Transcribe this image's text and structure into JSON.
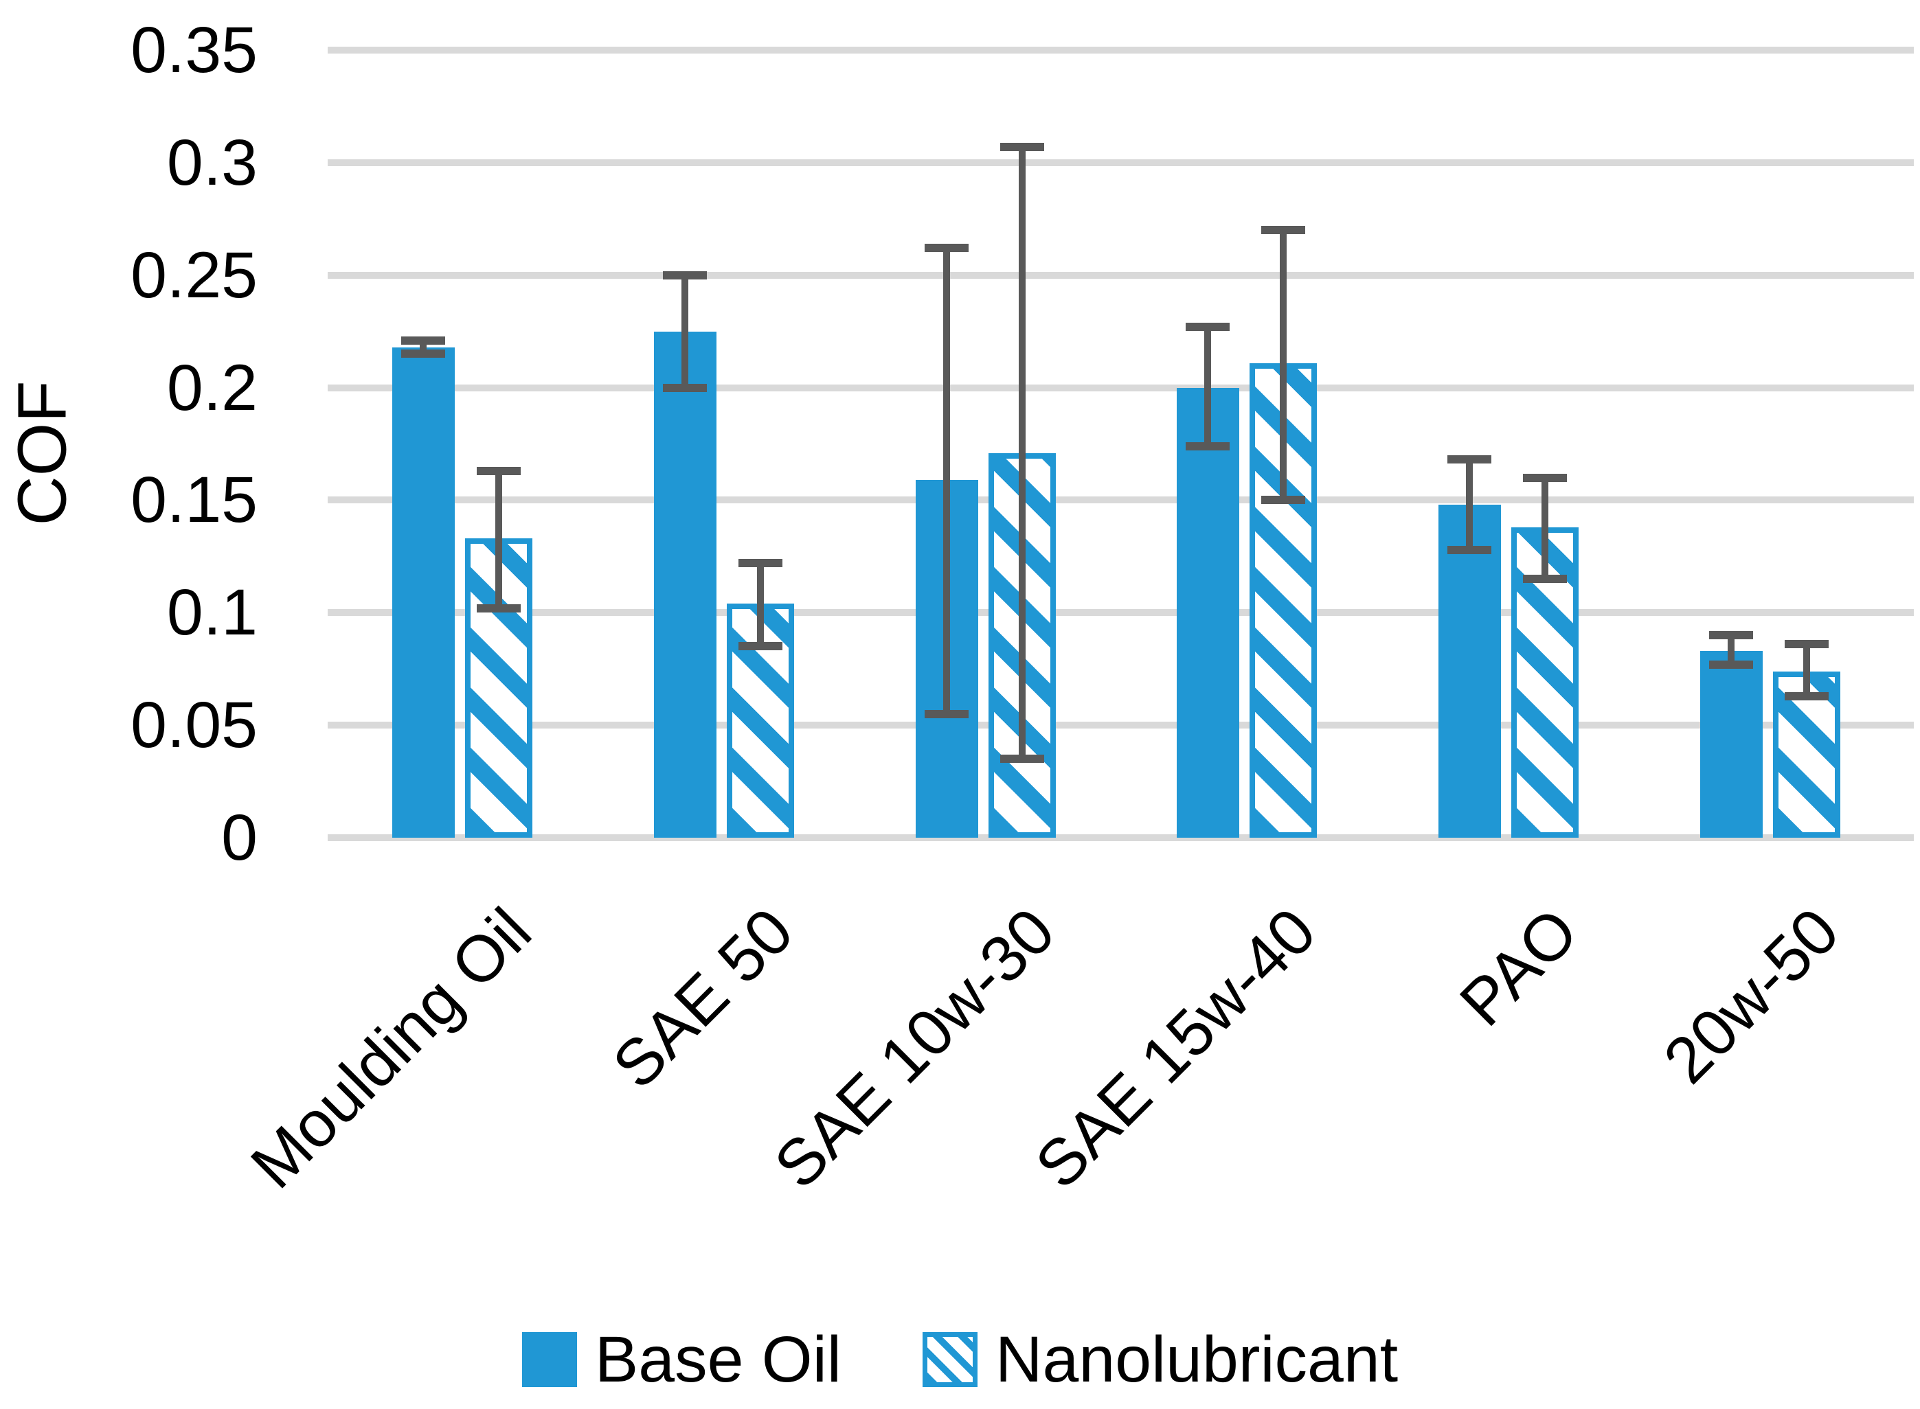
{
  "chart_data": {
    "type": "bar",
    "title": "",
    "xlabel": "",
    "ylabel": "COF",
    "ylim": [
      0,
      0.35
    ],
    "ytick_step": 0.05,
    "yticks": [
      0,
      0.05,
      0.1,
      0.15,
      0.2,
      0.25,
      0.3,
      0.35
    ],
    "ytick_labels": [
      "0",
      "0.05",
      "0.1",
      "0.15",
      "0.2",
      "0.25",
      "0.3",
      "0.35"
    ],
    "grid": true,
    "legend_position": "bottom",
    "categories": [
      "Moulding Oil",
      "SAE 50",
      "SAE 10w-30",
      "SAE 15w-40",
      "PAO",
      "20w-50"
    ],
    "series": [
      {
        "name": "Base Oil",
        "pattern": "solid",
        "values": [
          0.218,
          0.225,
          0.159,
          0.2,
          0.148,
          0.083
        ],
        "error_high": [
          0.221,
          0.25,
          0.262,
          0.227,
          0.168,
          0.09
        ],
        "error_low": [
          0.215,
          0.2,
          0.055,
          0.174,
          0.128,
          0.077
        ]
      },
      {
        "name": "Nanolubricant",
        "pattern": "diagonal-hatch",
        "values": [
          0.133,
          0.104,
          0.171,
          0.211,
          0.138,
          0.074
        ],
        "error_high": [
          0.163,
          0.122,
          0.307,
          0.27,
          0.16,
          0.086
        ],
        "error_low": [
          0.102,
          0.085,
          0.035,
          0.15,
          0.115,
          0.063
        ]
      }
    ]
  },
  "colors": {
    "bar_blue": "#2097d4",
    "error_bar_gray": "#595959",
    "gridline_gray": "#d9d9d9",
    "text": "#000000",
    "background": "#ffffff"
  },
  "legend": {
    "items": [
      "Base Oil",
      "Nanolubricant"
    ]
  }
}
